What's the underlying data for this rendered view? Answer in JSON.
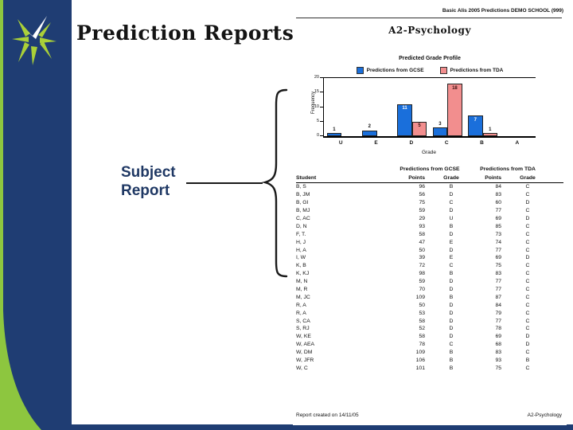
{
  "slide": {
    "title": "Prediction Reports",
    "callout_label": "Subject Report",
    "colors": {
      "navy": "#1f3d73",
      "green": "#8dc63f",
      "star_green": "#aad038"
    }
  },
  "report": {
    "header": "Basic Alis 2005 Predictions DEMO SCHOOL (999)",
    "title": "A2-Psychology",
    "footer_left": "Report created on 14/11/05",
    "footer_right": "A2-Psychology"
  },
  "chart_data": {
    "type": "bar",
    "title": "Predicted Grade Profile",
    "categories": [
      "U",
      "E",
      "D",
      "C",
      "B",
      "A"
    ],
    "series": [
      {
        "name": "Predictions from GCSE",
        "color": "#1a6fdb",
        "values": [
          1,
          2,
          11,
          3,
          7,
          0
        ]
      },
      {
        "name": "Predictions from TDA",
        "color": "#f28e8e",
        "values": [
          0,
          0,
          5,
          18,
          1,
          0
        ]
      }
    ],
    "xlabel": "Grade",
    "ylabel": "Frequency",
    "ylim": [
      0,
      20
    ],
    "yticks": [
      0,
      5,
      10,
      15,
      20
    ],
    "legend_position": "top"
  },
  "table": {
    "student_header": "Student",
    "group_1": "Predictions from GCSE",
    "group_2": "Predictions from TDA",
    "subheaders": [
      "Points",
      "Grade",
      "Points",
      "Grade"
    ],
    "rows": [
      [
        "B, S",
        "96",
        "B",
        "84",
        "C"
      ],
      [
        "B, JM",
        "56",
        "D",
        "83",
        "C"
      ],
      [
        "B, GI",
        "75",
        "C",
        "60",
        "D"
      ],
      [
        "B, MJ",
        "59",
        "D",
        "77",
        "C"
      ],
      [
        "C, AC",
        "29",
        "U",
        "69",
        "D"
      ],
      [
        "D, N",
        "93",
        "B",
        "85",
        "C"
      ],
      [
        "F, T.",
        "58",
        "D",
        "73",
        "C"
      ],
      [
        "H, J",
        "47",
        "E",
        "74",
        "C"
      ],
      [
        "H, A",
        "50",
        "D",
        "77",
        "C"
      ],
      [
        "I, W",
        "39",
        "E",
        "69",
        "D"
      ],
      [
        "K, B",
        "72",
        "C",
        "75",
        "C"
      ],
      [
        "K, KJ",
        "98",
        "B",
        "83",
        "C"
      ],
      [
        "M, N",
        "59",
        "D",
        "77",
        "C"
      ],
      [
        "M, R",
        "70",
        "D",
        "77",
        "C"
      ],
      [
        "M, JC",
        "109",
        "B",
        "87",
        "C"
      ],
      [
        "R, A",
        "50",
        "D",
        "84",
        "C"
      ],
      [
        "R, A",
        "53",
        "D",
        "79",
        "C"
      ],
      [
        "S, CA",
        "58",
        "D",
        "77",
        "C"
      ],
      [
        "S, RJ",
        "52",
        "D",
        "78",
        "C"
      ],
      [
        "W, KE",
        "58",
        "D",
        "69",
        "D"
      ],
      [
        "W, AEA",
        "78",
        "C",
        "68",
        "D"
      ],
      [
        "W, DM",
        "109",
        "B",
        "83",
        "C"
      ],
      [
        "W, JFR",
        "106",
        "B",
        "93",
        "B"
      ],
      [
        "W, C",
        "101",
        "B",
        "75",
        "C"
      ]
    ]
  }
}
